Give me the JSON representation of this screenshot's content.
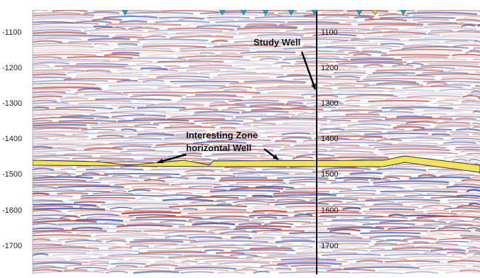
{
  "depth_axis_labels": [
    "-1100",
    "-1200",
    "-1300",
    "-1400",
    "-1500",
    "-1600",
    "-1700"
  ],
  "well_depth_labels": [
    "1100",
    "1200",
    "1300",
    "1400",
    "1500",
    "1600",
    "1700"
  ],
  "annotations": {
    "study_well": "Study Well",
    "interesting_zone_line1": "Interesting Zone",
    "interesting_zone_line2": "horizontal Well"
  },
  "well_markers": [
    {
      "color": "#1aa3c8",
      "icon": "triangle-down-icon"
    },
    {
      "color": "#1aa3c8",
      "icon": "triangle-down-icon"
    },
    {
      "color": "#1aa3c8",
      "icon": "triangle-down-icon"
    },
    {
      "color": "#1aa3c8",
      "icon": "triangle-down-icon"
    },
    {
      "color": "#1aa3c8",
      "icon": "triangle-down-icon"
    },
    {
      "color": "#1aa3c8",
      "icon": "triangle-down-icon"
    },
    {
      "color": "#e8d21a",
      "icon": "triangle-down-icon"
    },
    {
      "color": "#1aa3c8",
      "icon": "triangle-down-icon"
    }
  ],
  "colors": {
    "seismic_positive": "#c0392b",
    "seismic_negative": "#2d4fb5",
    "zone_fill": "#f2e35a",
    "well_line": "#000000"
  }
}
